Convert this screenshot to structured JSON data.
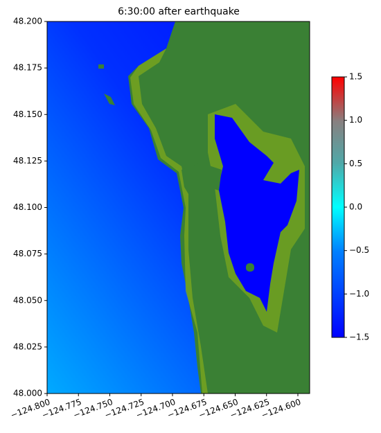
{
  "chart_data": {
    "type": "map",
    "title": "6:30:00 after earthquake",
    "xlim": [
      -124.8,
      -124.5906
    ],
    "ylim": [
      48.0,
      48.2
    ],
    "xticks": [
      {
        "value": -124.8,
        "label": "−124.800"
      },
      {
        "value": -124.775,
        "label": "−124.775"
      },
      {
        "value": -124.75,
        "label": "−124.750"
      },
      {
        "value": -124.725,
        "label": "−124.725"
      },
      {
        "value": -124.7,
        "label": "−124.700"
      },
      {
        "value": -124.675,
        "label": "−124.675"
      },
      {
        "value": -124.65,
        "label": "−124.650"
      },
      {
        "value": -124.625,
        "label": "−124.625"
      },
      {
        "value": -124.6,
        "label": "−124.600"
      }
    ],
    "yticks": [
      {
        "value": 48.0,
        "label": "48.000"
      },
      {
        "value": 48.025,
        "label": "48.025"
      },
      {
        "value": 48.05,
        "label": "48.050"
      },
      {
        "value": 48.075,
        "label": "48.075"
      },
      {
        "value": 48.1,
        "label": "48.100"
      },
      {
        "value": 48.125,
        "label": "48.125"
      },
      {
        "value": 48.15,
        "label": "48.150"
      },
      {
        "value": 48.175,
        "label": "48.175"
      },
      {
        "value": 48.2,
        "label": "48.200"
      }
    ],
    "colorbar": {
      "lim": [
        -1.5,
        1.5
      ],
      "ticks": [
        {
          "value": -1.5,
          "label": "−1.5"
        },
        {
          "value": -1.0,
          "label": "−1.0"
        },
        {
          "value": -0.5,
          "label": "−0.5"
        },
        {
          "value": 0.0,
          "label": "0.0"
        },
        0.5,
        {
          "value": 1.0,
          "label": "1.0"
        },
        1.5
      ]
    }
  }
}
